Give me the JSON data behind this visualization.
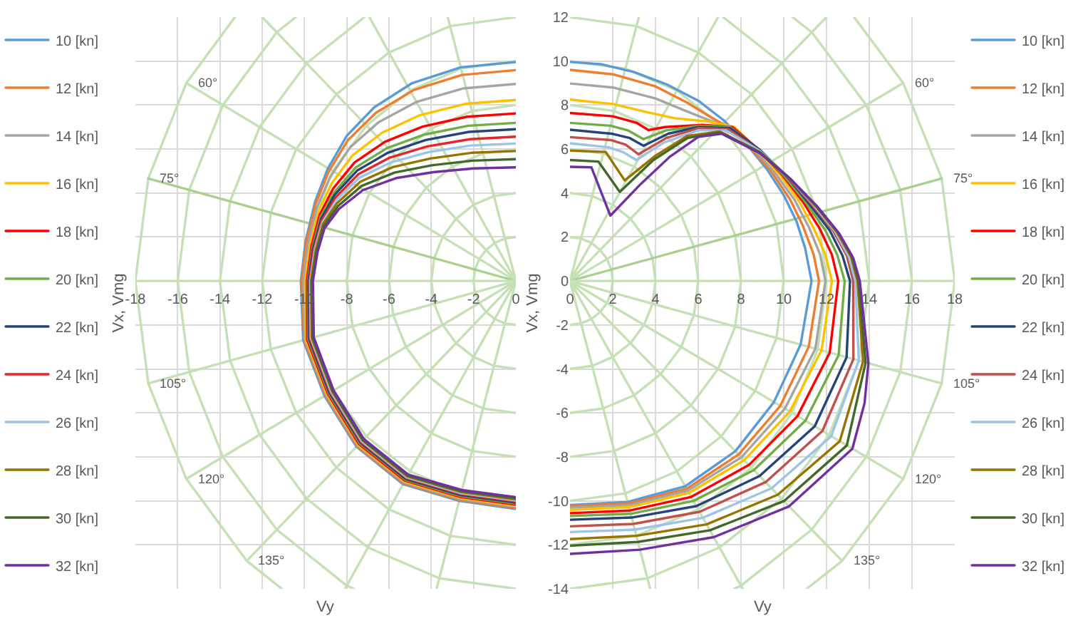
{
  "chart_data": [
    {
      "type": "line",
      "xlabel": "Vy",
      "ylabel": "Vx, Vmg",
      "xlim": [
        -18,
        0
      ],
      "ylim": [
        -14,
        12
      ],
      "xticks": [
        -18,
        -16,
        -14,
        -12,
        -10,
        -8,
        -6,
        -4,
        -2,
        0
      ],
      "yticks": [
        -14,
        -12,
        -10,
        -8,
        -6,
        -4,
        -2,
        0,
        2,
        4,
        6,
        8,
        10,
        12
      ],
      "tick_labels": "x",
      "grid": true,
      "legend": "left",
      "annotations": [
        {
          "text": "60°",
          "x": -15.59,
          "y": 9
        },
        {
          "text": "75°",
          "x": -17.39,
          "y": 4.66
        },
        {
          "text": "105°",
          "x": -17.39,
          "y": -4.66
        },
        {
          "text": "120°",
          "x": -15.59,
          "y": -9
        },
        {
          "text": "135°",
          "x": -12.73,
          "y": -12.73
        }
      ],
      "series": [
        {
          "color": "#c5e0b4",
          "x": [
            0,
            -0.52,
            -1,
            -1.41,
            -1.73,
            -1.93,
            -2,
            -1.93,
            -1.73,
            -1.41,
            -1,
            -0.52,
            0
          ],
          "values": [
            2,
            1.93,
            1.73,
            1.41,
            1,
            0.52,
            0,
            -0.52,
            -1,
            -1.41,
            -1.73,
            -1.93,
            -2
          ]
        },
        {
          "color": "#c5e0b4",
          "x": [
            0,
            -1.04,
            -2,
            -2.83,
            -3.46,
            -3.86,
            -4,
            -3.86,
            -3.46,
            -2.83,
            -2,
            -1.04,
            0
          ],
          "values": [
            4,
            3.86,
            3.46,
            2.83,
            2,
            1.04,
            0,
            -1.04,
            -2,
            -2.83,
            -3.46,
            -3.86,
            -4
          ]
        },
        {
          "color": "#c5e0b4",
          "x": [
            0,
            -1.55,
            -3,
            -4.24,
            -5.2,
            -5.8,
            -6,
            -5.8,
            -5.2,
            -4.24,
            -3,
            -1.55,
            0
          ],
          "values": [
            6,
            5.8,
            5.2,
            4.24,
            3,
            1.55,
            0,
            -1.55,
            -3,
            -4.24,
            -5.2,
            -5.8,
            -6
          ]
        },
        {
          "color": "#c5e0b4",
          "x": [
            0,
            -2.07,
            -4,
            -5.66,
            -6.93,
            -7.73,
            -8,
            -7.73,
            -6.93,
            -5.66,
            -4,
            -2.07,
            0
          ],
          "values": [
            8,
            7.73,
            6.93,
            5.66,
            4,
            2.07,
            0,
            -2.07,
            -4,
            -5.66,
            -6.93,
            -7.73,
            -8
          ]
        },
        {
          "color": "#c5e0b4",
          "x": [
            0,
            -2.59,
            -5,
            -7.07,
            -8.66,
            -9.66,
            -10,
            -9.66,
            -8.66,
            -7.07,
            -5,
            -2.59,
            0
          ],
          "values": [
            10,
            9.66,
            8.66,
            7.07,
            5,
            2.59,
            0,
            -2.59,
            -5,
            -7.07,
            -8.66,
            -9.66,
            -10
          ]
        },
        {
          "color": "#c5e0b4",
          "x": [
            0,
            -3.11,
            -6,
            -8.49,
            -10.39,
            -11.59,
            -12,
            -11.59,
            -10.39,
            -8.49,
            -6,
            -3.11,
            0
          ],
          "values": [
            12,
            11.59,
            10.39,
            8.49,
            6,
            3.11,
            0,
            -3.11,
            -6,
            -8.49,
            -10.39,
            -11.59,
            -12
          ]
        },
        {
          "color": "#c5e0b4",
          "x": [
            -7.16,
            -9.9,
            -12.12,
            -13.52,
            -14,
            -13.52,
            -12.12,
            -9.9,
            -7,
            -3.62,
            0
          ],
          "values": [
            12,
            9.9,
            7,
            3.62,
            0,
            -3.62,
            -7,
            -9.9,
            -12.12,
            -13.52,
            -14
          ]
        },
        {
          "color": "#c5e0b4",
          "x": [
            -10.41,
            -11.31,
            -13.86,
            -15.45,
            -16,
            -15.45,
            -13.86,
            -11.31,
            -8,
            -7.66
          ],
          "values": [
            12,
            11.31,
            8,
            4.14,
            0,
            -4.14,
            -8,
            -11.31,
            -13.86,
            -14
          ]
        },
        {
          "color": "#c5e0b4",
          "x": [
            -13.29,
            -15.59,
            -17.39,
            -18,
            -17.39,
            -15.59,
            -12.73,
            -11.07
          ],
          "values": [
            12,
            9,
            4.66,
            0,
            -4.66,
            -9,
            -12.73,
            -14
          ]
        },
        {
          "color": "#c5e0b4",
          "x": [
            0,
            -3.22
          ],
          "values": [
            0,
            12
          ]
        },
        {
          "color": "#c5e0b4",
          "x": [
            0,
            -6.93
          ],
          "values": [
            0,
            12
          ]
        },
        {
          "color": "#c5e0b4",
          "x": [
            0,
            -12
          ],
          "values": [
            0,
            12
          ]
        },
        {
          "color": "#c5e0b4",
          "x": [
            0,
            -15.59
          ],
          "values": [
            0,
            9
          ]
        },
        {
          "color": "#a9d18e",
          "x": [
            0,
            -17.39
          ],
          "values": [
            0,
            4.66
          ]
        },
        {
          "color": "#c5e0b4",
          "x": [
            0,
            -18
          ],
          "values": [
            0,
            0
          ]
        },
        {
          "color": "#c5e0b4",
          "x": [
            0,
            -17.39
          ],
          "values": [
            0,
            -4.66
          ]
        },
        {
          "color": "#c5e0b4",
          "x": [
            0,
            -15.59
          ],
          "values": [
            0,
            -9
          ]
        },
        {
          "color": "#c5e0b4",
          "x": [
            0,
            -12.73
          ],
          "values": [
            0,
            -12.73
          ]
        },
        {
          "color": "#c5e0b4",
          "x": [
            0,
            -8.08
          ],
          "values": [
            0,
            -14
          ]
        },
        {
          "color": "#c5e0b4",
          "x": [
            0,
            -3.75
          ],
          "values": [
            0,
            -14
          ]
        },
        {
          "name": "10 [kn]",
          "color": "#5b9bd5",
          "x": [
            0,
            -2.6,
            -4.9,
            -6.7,
            -8,
            -8.9,
            -9.5,
            -9.95,
            -10.17,
            -10.06,
            -9.05,
            -7.54,
            -5.34,
            -2.68,
            0
          ],
          "values": [
            9.96,
            9.72,
            9,
            7.9,
            6.6,
            5.1,
            3.6,
            1.8,
            0,
            -2.7,
            -5.23,
            -7.54,
            -9.24,
            -10,
            -10.37
          ]
        },
        {
          "name": "12 [kn]",
          "color": "#ed7d31",
          "x": [
            0,
            -2.55,
            -4.82,
            -6.62,
            -7.94,
            -8.86,
            -9.47,
            -9.91,
            -10.13,
            -10.02,
            -9.01,
            -7.51,
            -5.31,
            -2.67,
            0
          ],
          "values": [
            9.59,
            9.37,
            8.69,
            7.65,
            6.41,
            4.96,
            3.51,
            1.76,
            0,
            -2.68,
            -5.2,
            -7.51,
            -9.2,
            -9.95,
            -10.32
          ]
        },
        {
          "name": "14 [kn]",
          "color": "#a5a5a5",
          "x": [
            0,
            -2.47,
            -4.69,
            -6.48,
            -7.84,
            -8.79,
            -9.41,
            -9.83,
            -10.05,
            -9.98,
            -8.97,
            -7.48,
            -5.29,
            -2.66,
            0
          ],
          "values": [
            8.96,
            8.76,
            8.15,
            7.23,
            6.08,
            4.72,
            3.35,
            1.7,
            0,
            -2.67,
            -5.18,
            -7.48,
            -9.16,
            -9.91,
            -10.27
          ]
        },
        {
          "name": "16 [kn]",
          "color": "#ffc000",
          "x": [
            0,
            -2.38,
            -4.54,
            -6.33,
            -7.73,
            -8.71,
            -9.34,
            -9.74,
            -9.96,
            -9.93,
            -8.93,
            -7.45,
            -5.27,
            -2.64,
            0
          ],
          "values": [
            8.23,
            8.06,
            7.54,
            6.74,
            5.71,
            4.44,
            3.17,
            1.63,
            0,
            -2.66,
            -5.16,
            -7.45,
            -9.12,
            -9.86,
            -10.22
          ]
        },
        {
          "name": "18 [kn]",
          "color": "#ff0000",
          "x": [
            0,
            -2.31,
            -4.41,
            -6.19,
            -7.63,
            -8.64,
            -9.28,
            -9.67,
            -9.89,
            -9.88,
            -8.89,
            -7.42,
            -5.25,
            -2.63,
            0
          ],
          "values": [
            7.62,
            7.47,
            7.02,
            6.33,
            5.39,
            4.21,
            3.01,
            1.57,
            0,
            -2.65,
            -5.14,
            -7.42,
            -9.08,
            -9.82,
            -10.17
          ]
        },
        {
          "name": "20 [kn]",
          "color": "#70ad47",
          "x": [
            0,
            -2.25,
            -4.32,
            -6.1,
            -7.56,
            -8.59,
            -9.24,
            -9.62,
            -9.84,
            -9.83,
            -8.85,
            -7.38,
            -5.22,
            -2.62,
            0
          ],
          "values": [
            7.19,
            7.06,
            6.66,
            6.04,
            5.17,
            4.04,
            2.91,
            1.52,
            0,
            -2.63,
            -5.11,
            -7.38,
            -9.04,
            -9.78,
            -10.12
          ]
        },
        {
          "name": "22 [kn]",
          "color": "#264478",
          "x": [
            0,
            -2.22,
            -4.26,
            -6.04,
            -7.51,
            -8.56,
            -9.21,
            -9.59,
            -9.81,
            -9.79,
            -8.82,
            -7.35,
            -5.2,
            -2.61,
            0
          ],
          "values": [
            6.9,
            6.78,
            6.41,
            5.84,
            5.02,
            3.93,
            2.83,
            1.49,
            0,
            -2.62,
            -5.09,
            -7.35,
            -9.01,
            -9.74,
            -10.08
          ]
        },
        {
          "name": "24 [kn]",
          "color": "#e3262b",
          "x": [
            0,
            -2.17,
            -4.19,
            -5.96,
            -7.46,
            -8.52,
            -9.18,
            -9.55,
            -9.77,
            -9.75,
            -8.77,
            -7.32,
            -5.18,
            -2.6,
            0
          ],
          "values": [
            6.56,
            6.45,
            6.12,
            5.61,
            4.85,
            3.8,
            2.75,
            1.46,
            0,
            -2.61,
            -5.07,
            -7.32,
            -8.96,
            -9.69,
            -10.03
          ]
        },
        {
          "name": "26 [kn]",
          "color": "#9dc3e6",
          "x": [
            0,
            -2.14,
            -4.13,
            -5.89,
            -7.41,
            -8.49,
            -9.15,
            -9.51,
            -9.73,
            -9.7,
            -8.74,
            -7.29,
            -5.16,
            -2.59,
            0
          ],
          "values": [
            6.25,
            6.16,
            5.86,
            5.4,
            4.69,
            3.68,
            2.67,
            1.43,
            0,
            -2.6,
            -5.05,
            -7.29,
            -8.93,
            -9.65,
            -9.98
          ]
        },
        {
          "name": "28 [kn]",
          "color": "#997300",
          "x": [
            0,
            -2.09,
            -4.05,
            -5.82,
            -7.36,
            -8.45,
            -9.12,
            -9.47,
            -9.69,
            -9.65,
            -8.69,
            -7.25,
            -5.13,
            -2.57,
            0
          ],
          "values": [
            5.91,
            5.83,
            5.57,
            5.18,
            4.51,
            3.55,
            2.59,
            1.39,
            0,
            -2.59,
            -5.02,
            -7.25,
            -8.89,
            -9.6,
            -9.93
          ]
        },
        {
          "name": "30 [kn]",
          "color": "#43682b",
          "x": [
            0,
            -2.05,
            -3.98,
            -5.74,
            -7.3,
            -8.41,
            -9.09,
            -9.42,
            -9.64,
            -9.61,
            -8.66,
            -7.23,
            -5.11,
            -2.56,
            0
          ],
          "values": [
            5.54,
            5.47,
            5.26,
            4.93,
            4.32,
            3.41,
            2.49,
            1.36,
            0,
            -2.58,
            -5,
            -7.23,
            -8.85,
            -9.56,
            -9.88
          ]
        },
        {
          "name": "32 [kn]",
          "color": "#7030a0",
          "x": [
            0,
            -2,
            -3.9,
            -5.66,
            -7.24,
            -8.37,
            -9.05,
            -9.38,
            -9.6,
            -9.56,
            -8.62,
            -7.19,
            -5.09,
            -2.55,
            0
          ],
          "values": [
            5.17,
            5.12,
            4.95,
            4.68,
            4.13,
            3.27,
            2.4,
            1.32,
            0,
            -2.56,
            -4.98,
            -7.19,
            -8.81,
            -9.51,
            -9.83
          ]
        }
      ]
    },
    {
      "type": "line",
      "xlabel": "Vy",
      "ylabel": "Vx, Vmg",
      "xlim": [
        0,
        18
      ],
      "ylim": [
        -14,
        12
      ],
      "xticks": [
        0,
        2,
        4,
        6,
        8,
        10,
        12,
        14,
        16,
        18
      ],
      "yticks": [
        -14,
        -12,
        -10,
        -8,
        -6,
        -4,
        -2,
        0,
        2,
        4,
        6,
        8,
        10,
        12
      ],
      "grid": true,
      "legend": "right",
      "annotations": [
        {
          "text": "60°",
          "x": 15.59,
          "y": 9
        },
        {
          "text": "75°",
          "x": 17.39,
          "y": 4.66
        },
        {
          "text": "105°",
          "x": 17.39,
          "y": -4.66
        },
        {
          "text": "120°",
          "x": 15.59,
          "y": -9
        },
        {
          "text": "135°",
          "x": 12.73,
          "y": -12.73
        }
      ],
      "series": [
        {
          "color": "#c5e0b4",
          "x": [
            0,
            0.52,
            1,
            1.41,
            1.73,
            1.93,
            2,
            1.93,
            1.73,
            1.41,
            1,
            0.52,
            0
          ],
          "values": [
            2,
            1.93,
            1.73,
            1.41,
            1,
            0.52,
            0,
            -0.52,
            -1,
            -1.41,
            -1.73,
            -1.93,
            -2
          ]
        },
        {
          "color": "#c5e0b4",
          "x": [
            0,
            1.04,
            2,
            2.83,
            3.46,
            3.86,
            4,
            3.86,
            3.46,
            2.83,
            2,
            1.04,
            0
          ],
          "values": [
            4,
            3.86,
            3.46,
            2.83,
            2,
            1.04,
            0,
            -1.04,
            -2,
            -2.83,
            -3.46,
            -3.86,
            -4
          ]
        },
        {
          "color": "#c5e0b4",
          "x": [
            0,
            1.55,
            3,
            4.24,
            5.2,
            5.8,
            6,
            5.8,
            5.2,
            4.24,
            3,
            1.55,
            0
          ],
          "values": [
            6,
            5.8,
            5.2,
            4.24,
            3,
            1.55,
            0,
            -1.55,
            -3,
            -4.24,
            -5.2,
            -5.8,
            -6
          ]
        },
        {
          "color": "#c5e0b4",
          "x": [
            0,
            2.07,
            4,
            5.66,
            6.93,
            7.73,
            8,
            7.73,
            6.93,
            5.66,
            4,
            2.07,
            0
          ],
          "values": [
            8,
            7.73,
            6.93,
            5.66,
            4,
            2.07,
            0,
            -2.07,
            -4,
            -5.66,
            -6.93,
            -7.73,
            -8
          ]
        },
        {
          "color": "#c5e0b4",
          "x": [
            0,
            2.59,
            5,
            7.07,
            8.66,
            9.66,
            10,
            9.66,
            8.66,
            7.07,
            5,
            2.59,
            0
          ],
          "values": [
            10,
            9.66,
            8.66,
            7.07,
            5,
            2.59,
            0,
            -2.59,
            -5,
            -7.07,
            -8.66,
            -9.66,
            -10
          ]
        },
        {
          "color": "#c5e0b4",
          "x": [
            0,
            3.11,
            6,
            8.49,
            10.39,
            11.59,
            12,
            11.59,
            10.39,
            8.49,
            6,
            3.11,
            0
          ],
          "values": [
            12,
            11.59,
            10.39,
            8.49,
            6,
            3.11,
            0,
            -3.11,
            -6,
            -8.49,
            -10.39,
            -11.59,
            -12
          ]
        },
        {
          "color": "#c5e0b4",
          "x": [
            7.16,
            9.9,
            12.12,
            13.52,
            14,
            13.52,
            12.12,
            9.9,
            7,
            3.62,
            0
          ],
          "values": [
            12,
            9.9,
            7,
            3.62,
            0,
            -3.62,
            -7,
            -9.9,
            -12.12,
            -13.52,
            -14
          ]
        },
        {
          "color": "#c5e0b4",
          "x": [
            10.41,
            11.31,
            13.86,
            15.45,
            16,
            15.45,
            13.86,
            11.31,
            8,
            7.66
          ],
          "values": [
            12,
            11.31,
            8,
            4.14,
            0,
            -4.14,
            -8,
            -11.31,
            -13.86,
            -14
          ]
        },
        {
          "color": "#c5e0b4",
          "x": [
            13.29,
            15.59,
            17.39,
            18,
            17.39,
            15.59,
            12.73,
            11.07
          ],
          "values": [
            12,
            9,
            4.66,
            0,
            -4.66,
            -9,
            -12.73,
            -14
          ]
        },
        {
          "color": "#c5e0b4",
          "x": [
            0,
            3.22
          ],
          "values": [
            0,
            12
          ]
        },
        {
          "color": "#c5e0b4",
          "x": [
            0,
            6.93
          ],
          "values": [
            0,
            12
          ]
        },
        {
          "color": "#c5e0b4",
          "x": [
            0,
            12
          ],
          "values": [
            0,
            12
          ]
        },
        {
          "color": "#c5e0b4",
          "x": [
            0,
            15.59
          ],
          "values": [
            0,
            9
          ]
        },
        {
          "color": "#a9d18e",
          "x": [
            0,
            17.39
          ],
          "values": [
            0,
            4.66
          ]
        },
        {
          "color": "#c5e0b4",
          "x": [
            0,
            18
          ],
          "values": [
            0,
            0
          ]
        },
        {
          "color": "#c5e0b4",
          "x": [
            0,
            17.39
          ],
          "values": [
            0,
            -4.66
          ]
        },
        {
          "color": "#c5e0b4",
          "x": [
            0,
            15.59
          ],
          "values": [
            0,
            -9
          ]
        },
        {
          "color": "#c5e0b4",
          "x": [
            0,
            12.73
          ],
          "values": [
            0,
            -12.73
          ]
        },
        {
          "color": "#c5e0b4",
          "x": [
            0,
            8.08
          ],
          "values": [
            0,
            -14
          ]
        },
        {
          "color": "#c5e0b4",
          "x": [
            0,
            3.75
          ],
          "values": [
            0,
            -14
          ]
        },
        {
          "name": "10 [kn]",
          "color": "#5b9bd5",
          "x": [
            0,
            1.5,
            3,
            4.5,
            6,
            7.2,
            8.2,
            9.2,
            10,
            10.6,
            11,
            11.3,
            10.79,
            9.54,
            7.74,
            5.39,
            2.69,
            0
          ],
          "values": [
            9.96,
            9.85,
            9.5,
            8.95,
            8.2,
            7.3,
            6.3,
            5.1,
            3.9,
            2.7,
            1.5,
            0,
            -2.89,
            -5.51,
            -7.74,
            -9.34,
            -10.05,
            -10.19
          ]
        },
        {
          "name": "12 [kn]",
          "color": "#ed7d31",
          "x": [
            0,
            2,
            4,
            5.5,
            6.5,
            7.4,
            8.4,
            9.4,
            10.3,
            10.9,
            11.4,
            11.65,
            11.17,
            9.84,
            7.89,
            5.46,
            2.71,
            0
          ],
          "values": [
            9.6,
            9.4,
            8.85,
            8.1,
            7.5,
            7,
            6.1,
            5,
            3.7,
            2.5,
            1.2,
            0,
            -2.99,
            -5.68,
            -7.89,
            -9.45,
            -10.12,
            -10.25
          ]
        },
        {
          "name": "14 [kn]",
          "color": "#a5a5a5",
          "x": [
            0,
            2,
            4,
            5.5,
            6.8,
            7.6,
            8.6,
            9.6,
            10.5,
            11.2,
            11.7,
            11.95,
            11.48,
            10.05,
            8.02,
            5.51,
            2.73,
            0
          ],
          "values": [
            8.98,
            8.8,
            8.3,
            7.7,
            7.2,
            6.9,
            6,
            4.9,
            3.7,
            2.4,
            1.2,
            0,
            -3.08,
            -5.81,
            -8.02,
            -9.54,
            -10.2,
            -10.32
          ]
        },
        {
          "name": "16 [kn]",
          "color": "#ffc000",
          "x": [
            0,
            2,
            3.5,
            4.9,
            6.5,
            7.7,
            8.7,
            9.8,
            10.7,
            11.4,
            11.95,
            12.25,
            11.77,
            10.28,
            8.15,
            5.57,
            2.76,
            0
          ],
          "values": [
            8.25,
            8.05,
            7.7,
            7.4,
            7.25,
            7,
            6.05,
            4.85,
            3.65,
            2.4,
            1.2,
            0,
            -3.15,
            -5.94,
            -8.15,
            -9.64,
            -10.29,
            -10.41
          ]
        },
        {
          "name": "18 [kn]",
          "color": "#ff0000",
          "x": [
            0,
            2,
            3.1,
            3.67,
            4.44,
            6.2,
            7.6,
            8.8,
            9.95,
            10.9,
            11.7,
            12.25,
            12.55,
            12.15,
            10.64,
            8.37,
            5.67,
            2.8,
            0
          ],
          "values": [
            7.64,
            7.49,
            7.2,
            6.86,
            7,
            7.1,
            7,
            6,
            4.8,
            3.6,
            2.35,
            1.2,
            0,
            -3.26,
            -6.15,
            -8.37,
            -9.82,
            -10.44,
            -10.56
          ]
        },
        {
          "name": "20 [kn]",
          "color": "#70ad47",
          "x": [
            0,
            1.9,
            2.7,
            3.44,
            4.5,
            6,
            7.5,
            8.85,
            10.05,
            11.05,
            11.95,
            12.5,
            12.85,
            12.57,
            11.01,
            8.6,
            5.78,
            2.84,
            0
          ],
          "values": [
            7.19,
            7.06,
            6.85,
            6.45,
            6.85,
            7.05,
            7,
            5.95,
            4.75,
            3.55,
            2.3,
            1.2,
            0,
            -3.37,
            -6.36,
            -8.6,
            -10,
            -10.59,
            -10.69
          ]
        },
        {
          "name": "22 [kn]",
          "color": "#264478",
          "x": [
            0,
            2,
            2.8,
            3.44,
            4.6,
            6,
            7.5,
            8.9,
            10.15,
            11.2,
            12.15,
            12.75,
            13.1,
            12.94,
            11.45,
            8.87,
            5.91,
            2.88,
            0
          ],
          "values": [
            6.88,
            6.69,
            6.5,
            6.15,
            6.7,
            7,
            6.95,
            5.95,
            4.75,
            3.5,
            2.3,
            1.15,
            0,
            -3.47,
            -6.61,
            -8.87,
            -10.24,
            -10.76,
            -10.86
          ]
        },
        {
          "name": "24 [kn]",
          "color": "#c0504d",
          "x": [
            0,
            1.9,
            2.6,
            3.2,
            4.5,
            6,
            7.4,
            8.9,
            10.2,
            11.3,
            12.3,
            12.95,
            13.25,
            13.26,
            11.81,
            9.15,
            6.06,
            2.96,
            0
          ],
          "values": [
            6.54,
            6.41,
            6.2,
            5.76,
            6.5,
            6.95,
            6.9,
            5.9,
            4.7,
            3.5,
            2.3,
            1.15,
            0,
            -3.55,
            -6.82,
            -9.15,
            -10.5,
            -11.05,
            -11.16
          ]
        },
        {
          "name": "26 [kn]",
          "color": "#9dc3e6",
          "x": [
            0,
            1.8,
            2.5,
            3.1,
            4.4,
            6,
            7.3,
            8.9,
            10.25,
            11.4,
            12.4,
            13.05,
            13.35,
            13.51,
            12.22,
            9.43,
            6.22,
            3.03,
            0
          ],
          "values": [
            6.26,
            6.08,
            5.85,
            5.5,
            6.3,
            6.85,
            6.85,
            5.9,
            4.7,
            3.45,
            2.25,
            1.1,
            0,
            -3.62,
            -7.06,
            -9.43,
            -10.77,
            -11.31,
            -11.42
          ]
        },
        {
          "name": "28 [kn]",
          "color": "#997300",
          "x": [
            0,
            1.67,
            2.56,
            4,
            5.5,
            7,
            8.9,
            10.3,
            11.5,
            12.5,
            13.15,
            13.45,
            13.71,
            12.62,
            9.72,
            6.39,
            3.11,
            0
          ],
          "values": [
            5.93,
            5.87,
            4.57,
            5.7,
            6.6,
            6.8,
            5.85,
            4.65,
            3.4,
            2.2,
            1.1,
            0,
            -3.67,
            -7.29,
            -9.72,
            -11.07,
            -11.59,
            -11.74
          ]
        },
        {
          "name": "30 [kn]",
          "color": "#43682b",
          "x": [
            0,
            1.33,
            2.33,
            3.9,
            5.5,
            7,
            8.9,
            10.3,
            11.55,
            12.55,
            13.2,
            13.5,
            13.83,
            12.95,
            10.01,
            6.55,
            3.18,
            0
          ],
          "values": [
            5.5,
            5.43,
            4.05,
            5.5,
            6.5,
            6.75,
            5.85,
            4.65,
            3.4,
            2.2,
            1.1,
            0,
            -3.71,
            -7.48,
            -10.01,
            -11.34,
            -11.87,
            -12.04
          ]
        },
        {
          "name": "32 [kn]",
          "color": "#7030a0",
          "x": [
            0,
            1,
            1.89,
            3.3,
            4.67,
            6,
            7.1,
            8.9,
            10.35,
            11.6,
            12.6,
            13.25,
            13.56,
            13.96,
            13.78,
            13.21,
            10.25,
            6.73,
            3.27,
            0
          ],
          "values": [
            5.19,
            5.17,
            2.97,
            4.4,
            5.65,
            6.55,
            6.7,
            5.8,
            4.6,
            3.35,
            2.15,
            1.05,
            0,
            -3.74,
            -5.56,
            -7.63,
            -10.25,
            -11.65,
            -12.22,
            -12.41
          ]
        }
      ]
    }
  ]
}
